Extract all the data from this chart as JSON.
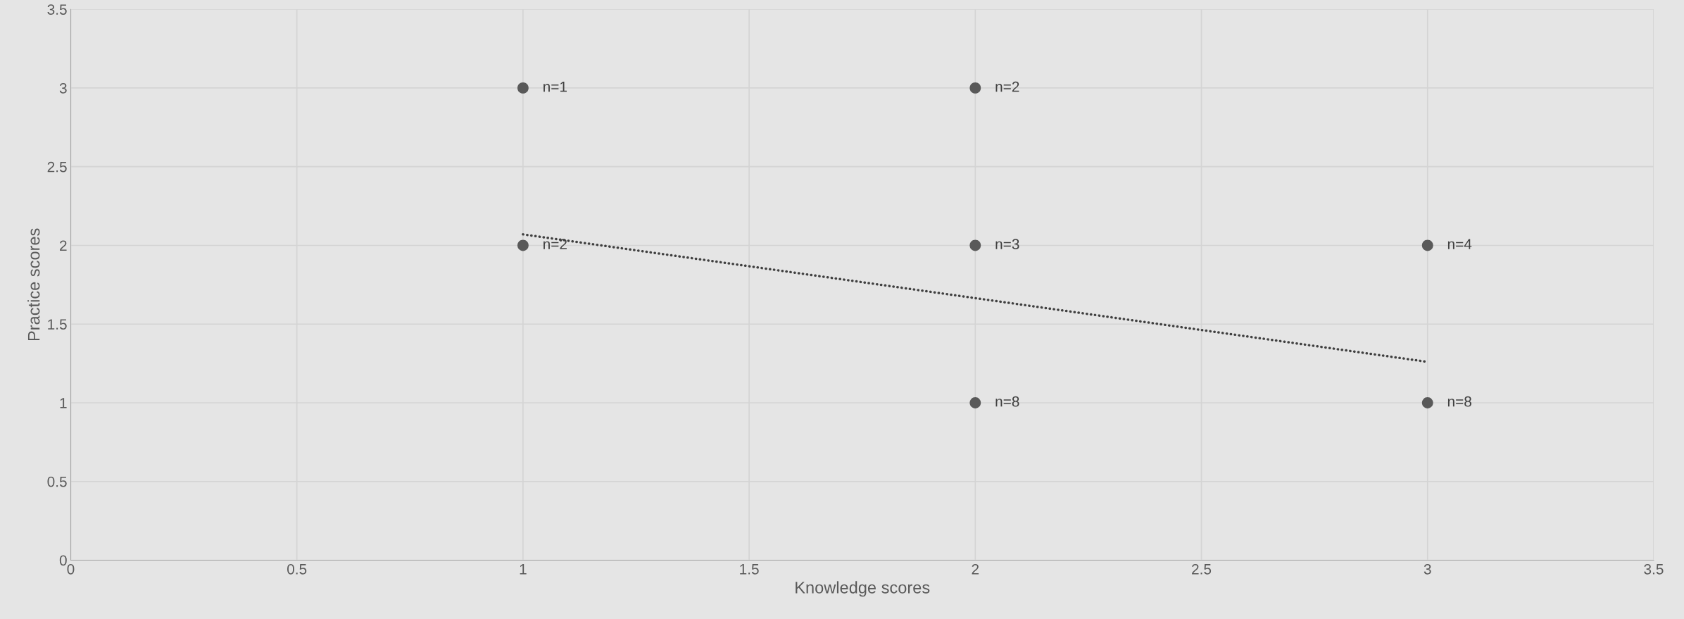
{
  "chart_data": {
    "type": "scatter",
    "xlabel": "Knowledge scores",
    "ylabel": "Practice scores",
    "xlim": [
      0,
      3.5
    ],
    "ylim": [
      0,
      3.5
    ],
    "xticks": [
      0,
      0.5,
      1,
      1.5,
      2,
      2.5,
      3,
      3.5
    ],
    "yticks": [
      0,
      0.5,
      1,
      1.5,
      2,
      2.5,
      3,
      3.5
    ],
    "grid": true,
    "marker": "circle",
    "series": [
      {
        "color": "#595959",
        "x": [
          1,
          1,
          2,
          2,
          2,
          3,
          3
        ],
        "values": [
          3,
          2,
          3,
          2,
          1,
          2,
          1
        ]
      },
      {
        "type": "line",
        "color": "#404040",
        "line_style": "dotted",
        "marker": "none",
        "x": [
          1,
          3
        ],
        "values": [
          2.07,
          1.26
        ]
      }
    ],
    "annotations": [
      {
        "text": "n=1",
        "x": 1,
        "y": 3
      },
      {
        "text": "n=2",
        "x": 1,
        "y": 2
      },
      {
        "text": "n=2",
        "x": 2,
        "y": 3
      },
      {
        "text": "n=3",
        "x": 2,
        "y": 2
      },
      {
        "text": "n=8",
        "x": 2,
        "y": 1
      },
      {
        "text": "n=4",
        "x": 3,
        "y": 2
      },
      {
        "text": "n=8",
        "x": 3,
        "y": 1
      }
    ]
  }
}
